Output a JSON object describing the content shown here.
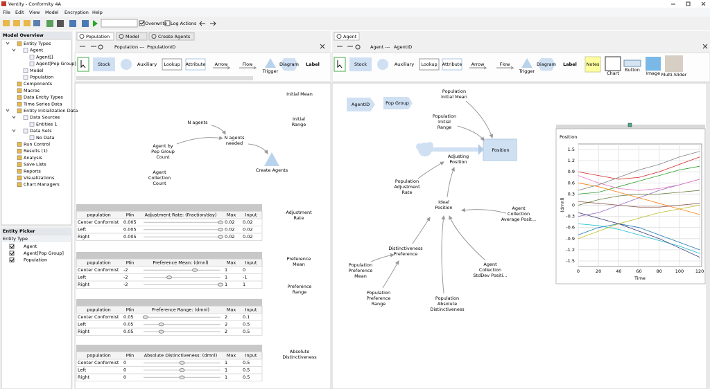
{
  "window": {
    "title": "Ventity - Conformity 4A"
  },
  "menu": [
    "File",
    "Edit",
    "View",
    "Model",
    "Encryption",
    "Help"
  ],
  "toolbar": {
    "overwrite": "Overwrite",
    "log_actions": "Log Actions"
  },
  "model_overview": {
    "title": "Model Overview",
    "tree": [
      {
        "label": "Entity Types",
        "children": [
          {
            "label": "Agent",
            "children": [
              {
                "label": "Agent[]"
              },
              {
                "label": "Agent[Pop Group]"
              }
            ]
          },
          {
            "label": "Model"
          },
          {
            "label": "Population"
          }
        ]
      },
      {
        "label": "Components"
      },
      {
        "label": "Macros"
      },
      {
        "label": "Data Entity Types"
      },
      {
        "label": "Time Series Data"
      },
      {
        "label": "Entity Initialization Data",
        "children": [
          {
            "label": "Data Sources",
            "children": [
              {
                "label": "Entities 1"
              }
            ]
          },
          {
            "label": "Data Sets",
            "children": [
              {
                "label": "No Data"
              }
            ]
          }
        ]
      },
      {
        "label": "Run Control"
      },
      {
        "label": "Results (1)"
      },
      {
        "label": "Analysis"
      },
      {
        "label": "Save Lists"
      },
      {
        "label": "Reports"
      },
      {
        "label": "Visualizations"
      },
      {
        "label": "Chart Managers"
      }
    ]
  },
  "entity_picker": {
    "title": "Entity Picker",
    "column": "Entity Type",
    "items": [
      "Agent",
      "Agent[Pop Group]",
      "Population"
    ]
  },
  "population_panel": {
    "tabs": [
      "Population",
      "Model",
      "Create Agents"
    ],
    "breadcrumb": [
      "Population ---",
      "PopulationID"
    ],
    "palette": [
      "Stock",
      "Auxiliary",
      "Lookup",
      "Attribute",
      "Arrow",
      "Flow",
      "Trigger",
      "Diagram",
      "Label"
    ],
    "nodes": [
      {
        "lines": [
          "N agents"
        ],
        "color": "#000000"
      },
      {
        "lines": [
          "N agents",
          "needed"
        ],
        "color": "#000000"
      },
      {
        "lines": [
          "Create Agents"
        ],
        "color": "#000000"
      },
      {
        "lines": [
          "Agent by",
          "Pop Group",
          "Count"
        ],
        "color": "#2e8b2e"
      },
      {
        "lines": [
          "Agent",
          "Collection",
          "Count"
        ],
        "color": "#2e8b2e"
      }
    ],
    "section_labels": [
      [
        "Initial Mean"
      ],
      [
        "Initial",
        "Range"
      ],
      [
        "Adjustment",
        "Rate"
      ],
      [
        "Preference",
        "Mean"
      ],
      [
        "Preference",
        "Range"
      ],
      [
        "Absolute",
        "Distinctiveness"
      ]
    ],
    "tables": [
      {
        "columns": [
          "population",
          "Min",
          "Adjustment Rate:  (Fraction/day)",
          "Max",
          "Input"
        ],
        "rows": [
          {
            "name": "Center Conformist",
            "min": 0.005,
            "max": 0.02,
            "input": 0.02
          },
          {
            "name": "Left",
            "min": 0.005,
            "max": 0.02,
            "input": 0.02
          },
          {
            "name": "Right",
            "min": 0.005,
            "max": 0.02,
            "input": 0.02
          }
        ]
      },
      {
        "columns": [
          "population",
          "Min",
          "Preference Mean:  (dmnl)",
          "Max",
          "Input"
        ],
        "rows": [
          {
            "name": "Center Conformist",
            "min": -2,
            "max": 1,
            "input": 0
          },
          {
            "name": "Left",
            "min": -2,
            "max": 1,
            "input": -1
          },
          {
            "name": "Right",
            "min": -2,
            "max": 1,
            "input": 1
          }
        ]
      },
      {
        "columns": [
          "population",
          "Min",
          "Preference Range:  (dmnl)",
          "Max",
          "Input"
        ],
        "rows": [
          {
            "name": "Center Conformist",
            "min": 0.05,
            "max": 2,
            "input": 0.1
          },
          {
            "name": "Left",
            "min": 0.05,
            "max": 2,
            "input": 0.5
          },
          {
            "name": "Right",
            "min": 0.05,
            "max": 2,
            "input": 0.5
          }
        ]
      },
      {
        "columns": [
          "population",
          "Min",
          "Absolute Distinctiveness:  (dmnl)",
          "Max",
          "Input"
        ],
        "rows": [
          {
            "name": "Center Conformist",
            "min": 0,
            "max": 1,
            "input": 0.5
          },
          {
            "name": "Left",
            "min": 0,
            "max": 1,
            "input": 0.5
          },
          {
            "name": "Right",
            "min": 0,
            "max": 1,
            "input": 0.5
          }
        ]
      }
    ]
  },
  "agent_panel": {
    "tabs": [
      "Agent"
    ],
    "breadcrumb": [
      "Agent ---",
      "AgentID"
    ],
    "palette": [
      "Stock",
      "Auxiliary",
      "Lookup",
      "Attribute",
      "Arrow",
      "Flow",
      "Trigger",
      "Diagram",
      "Label",
      "Notes",
      "Chart",
      "Button",
      "Image",
      "Multi-Slider"
    ],
    "nodes": [
      {
        "lines": [
          "AgentID"
        ],
        "color": "#000000"
      },
      {
        "lines": [
          "Pop Group"
        ],
        "color": "#000000"
      },
      {
        "lines": [
          "Population",
          "Initial Mean"
        ],
        "color": "#2e8b2e"
      },
      {
        "lines": [
          "Population",
          "Initial",
          "Range"
        ],
        "color": "#2e8b2e"
      },
      {
        "lines": [
          "Position"
        ],
        "color": "#000000"
      },
      {
        "lines": [
          "Adjusting",
          "Position"
        ],
        "color": "#000000"
      },
      {
        "lines": [
          "Population",
          "Adjustment",
          "Rate"
        ],
        "color": "#2e8b2e"
      },
      {
        "lines": [
          "Ideal",
          "Position"
        ],
        "color": "#000000"
      },
      {
        "lines": [
          "Agent",
          "Collection",
          "Average Posit..."
        ],
        "color": "#2e8b2e"
      },
      {
        "lines": [
          "Distinctiveness",
          "Preference"
        ],
        "color": "#000000"
      },
      {
        "lines": [
          "Population",
          "Preference",
          "Mean"
        ],
        "color": "#2e8b2e"
      },
      {
        "lines": [
          "Agent",
          "Collection",
          "StdDev Positi..."
        ],
        "color": "#2e8b2e"
      },
      {
        "lines": [
          "Population",
          "Preference",
          "Range"
        ],
        "color": "#2e8b2e"
      },
      {
        "lines": [
          "Population",
          "Absolute",
          "Distinctiveness"
        ],
        "color": "#2e8b2e"
      }
    ]
  },
  "chart_data": {
    "type": "line",
    "title": "Position",
    "y_label": "(dmnl)",
    "x_label": "Time",
    "grid": true,
    "x": [
      0,
      20,
      40,
      60,
      80,
      100,
      120
    ],
    "xlim": [
      0,
      122
    ],
    "xticks": [
      0,
      20,
      40,
      60,
      80,
      100,
      120
    ],
    "ylim": [
      -1.65,
      1.65
    ],
    "yticks": [
      1.5,
      1.2,
      0.9,
      0.6,
      0.3,
      0,
      -0.3,
      -0.6,
      -0.9,
      -1.2,
      -1.5
    ],
    "series": [
      {
        "color": "#d62728",
        "values": [
          0.9,
          0.8,
          0.7,
          0.75,
          0.9,
          1.1,
          1.3
        ]
      },
      {
        "color": "#1f77b4",
        "values": [
          -0.8,
          -0.6,
          -0.5,
          -0.6,
          -0.8,
          -1.0,
          -1.2
        ]
      },
      {
        "color": "#2ca02c",
        "values": [
          0.3,
          0.35,
          0.5,
          0.65,
          0.8,
          0.95,
          1.05
        ]
      },
      {
        "color": "#9467bd",
        "values": [
          -0.3,
          -0.2,
          0,
          0.2,
          0.4,
          0.55,
          0.7
        ]
      },
      {
        "color": "#ff7f0e",
        "values": [
          0.6,
          0.5,
          0.35,
          0.2,
          0.05,
          -0.1,
          -0.25
        ]
      },
      {
        "color": "#17becf",
        "values": [
          -0.5,
          -0.55,
          -0.65,
          -0.8,
          -0.95,
          -1.1,
          -1.3
        ]
      },
      {
        "color": "#8c564b",
        "values": [
          0.1,
          0.05,
          0,
          -0.05,
          -0.05,
          0,
          0.05
        ]
      },
      {
        "color": "#e377c2",
        "values": [
          0.8,
          0.6,
          0.45,
          0.4,
          0.45,
          0.55,
          0.7
        ]
      },
      {
        "color": "#bcbd22",
        "values": [
          -0.9,
          -0.7,
          -0.5,
          -0.35,
          -0.2,
          -0.1,
          0
        ]
      },
      {
        "color": "#7f7f7f",
        "values": [
          0.4,
          0.55,
          0.75,
          0.95,
          1.1,
          1.3,
          1.45
        ]
      },
      {
        "color": "#393b79",
        "values": [
          -0.2,
          -0.35,
          -0.5,
          -0.7,
          -0.9,
          -1.15,
          -1.4
        ]
      },
      {
        "color": "#637939",
        "values": [
          0,
          0.15,
          0.25,
          0.3,
          0.3,
          0.35,
          0.4
        ]
      }
    ]
  }
}
